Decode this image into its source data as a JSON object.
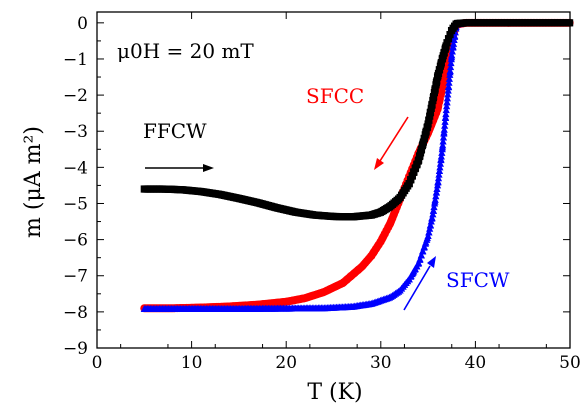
{
  "chart_data": {
    "type": "scatter",
    "field_annotation": "μ0H = 20 mT",
    "xlabel": "T (K)",
    "ylabel": "m (μA m²)",
    "xlim": [
      0,
      50
    ],
    "ylim": [
      -9,
      0.3
    ],
    "xticks": [
      0,
      10,
      20,
      30,
      40,
      50
    ],
    "yticks": [
      0,
      -1,
      -2,
      -3,
      -4,
      -5,
      -6,
      -7,
      -8,
      -9
    ],
    "grid": false,
    "legend": "none",
    "series": [
      {
        "name": "FFCW",
        "color": "#000000",
        "marker": "square",
        "x": [
          5,
          7,
          9,
          11,
          13,
          15,
          17,
          19,
          21,
          23,
          25,
          27,
          29,
          30,
          31,
          32,
          33,
          34,
          35,
          35.5,
          36,
          36.5,
          37,
          37.5,
          38,
          39,
          40,
          42,
          44,
          46,
          48,
          50
        ],
        "y": [
          -4.6,
          -4.6,
          -4.62,
          -4.67,
          -4.75,
          -4.86,
          -4.98,
          -5.12,
          -5.24,
          -5.32,
          -5.36,
          -5.37,
          -5.32,
          -5.24,
          -5.08,
          -4.85,
          -4.45,
          -3.8,
          -2.8,
          -2.15,
          -1.5,
          -1.0,
          -0.55,
          -0.2,
          -0.02,
          0.0,
          0.0,
          0.0,
          0.0,
          0.0,
          0.0,
          0.0
        ]
      },
      {
        "name": "SFCC",
        "color": "#ff0000",
        "marker": "circle",
        "x": [
          5,
          8,
          11,
          14,
          17,
          20,
          22,
          24,
          26,
          28,
          29,
          30,
          31,
          32,
          33,
          34,
          35,
          36,
          36.5,
          37,
          37.5,
          38,
          39,
          40,
          42,
          44,
          46,
          48,
          50
        ],
        "y": [
          -7.9,
          -7.9,
          -7.88,
          -7.85,
          -7.8,
          -7.72,
          -7.62,
          -7.45,
          -7.2,
          -6.75,
          -6.45,
          -6.05,
          -5.55,
          -4.9,
          -4.25,
          -3.6,
          -3.05,
          -2.4,
          -1.8,
          -1.1,
          -0.45,
          -0.05,
          0.0,
          0.0,
          0.0,
          0.0,
          0.0,
          0.0,
          0.0
        ]
      },
      {
        "name": "SFCW",
        "color": "#0000ff",
        "marker": "triangle",
        "x": [
          5,
          10,
          15,
          20,
          24,
          27,
          29,
          31,
          32,
          33,
          34,
          35,
          35.5,
          36,
          36.5,
          37,
          37.5,
          38,
          39,
          40,
          42,
          44,
          46,
          48,
          50
        ],
        "y": [
          -7.92,
          -7.92,
          -7.92,
          -7.91,
          -7.9,
          -7.86,
          -7.78,
          -7.6,
          -7.42,
          -7.1,
          -6.65,
          -5.9,
          -5.3,
          -4.5,
          -3.5,
          -2.2,
          -0.9,
          -0.05,
          0.0,
          0.0,
          0.0,
          0.0,
          0.0,
          0.0,
          0.0
        ]
      }
    ],
    "annotations": [
      {
        "text": "FFCW",
        "color": "#000000",
        "arrow": "right"
      },
      {
        "text": "SFCC",
        "color": "#ff0000",
        "arrow": "down-left"
      },
      {
        "text": "SFCW",
        "color": "#0000ff",
        "arrow": "up-right"
      }
    ]
  }
}
